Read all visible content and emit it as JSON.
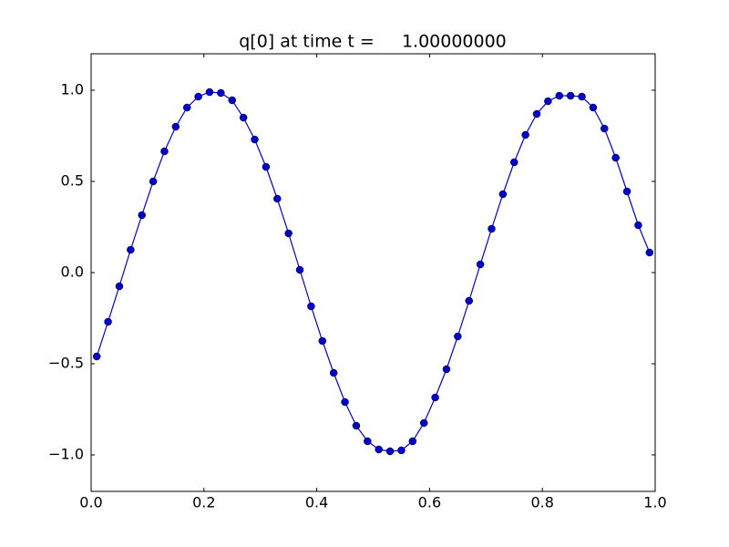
{
  "chart_data": {
    "type": "line",
    "title": "q[0] at time t =     1.00000000",
    "x": [
      0.01,
      0.03,
      0.05,
      0.07,
      0.09,
      0.11,
      0.13,
      0.15,
      0.17,
      0.19,
      0.21,
      0.23,
      0.25,
      0.27,
      0.29,
      0.31,
      0.33,
      0.35,
      0.37,
      0.39,
      0.41,
      0.43,
      0.45,
      0.47,
      0.49,
      0.51,
      0.53,
      0.55,
      0.57,
      0.59,
      0.61,
      0.63,
      0.65,
      0.67,
      0.69,
      0.71,
      0.73,
      0.75,
      0.77,
      0.79,
      0.81,
      0.83,
      0.85,
      0.87,
      0.89,
      0.91,
      0.93,
      0.95,
      0.97,
      0.99
    ],
    "series": [
      {
        "color": "#0000cc",
        "values": [
          -0.46,
          -0.27,
          -0.075,
          0.125,
          0.315,
          0.5,
          0.665,
          0.8,
          0.905,
          0.965,
          0.99,
          0.985,
          0.945,
          0.85,
          0.73,
          0.58,
          0.405,
          0.215,
          0.015,
          -0.185,
          -0.375,
          -0.55,
          -0.71,
          -0.84,
          -0.925,
          -0.97,
          -0.98,
          -0.975,
          -0.925,
          -0.825,
          -0.685,
          -0.53,
          -0.35,
          -0.155,
          0.045,
          0.24,
          0.43,
          0.605,
          0.755,
          0.87,
          0.94,
          0.97,
          0.97,
          0.965,
          0.905,
          0.79,
          0.63,
          0.445,
          0.26,
          0.11
        ]
      }
    ],
    "xlim": [
      0,
      1
    ],
    "ylim": [
      -1.2,
      1.2
    ],
    "xticks": [
      {
        "value": 0,
        "label": "0.0"
      },
      0.2,
      0.4,
      0.6,
      0.8,
      {
        "value": 1,
        "label": "1.0"
      }
    ],
    "yticks": [
      {
        "value": -1,
        "label": "−1.0"
      },
      {
        "value": -0.5,
        "label": "−0.5"
      },
      {
        "value": 0,
        "label": "0.0"
      },
      0.5,
      {
        "value": 1,
        "label": "1.0"
      }
    ],
    "grid": false
  }
}
